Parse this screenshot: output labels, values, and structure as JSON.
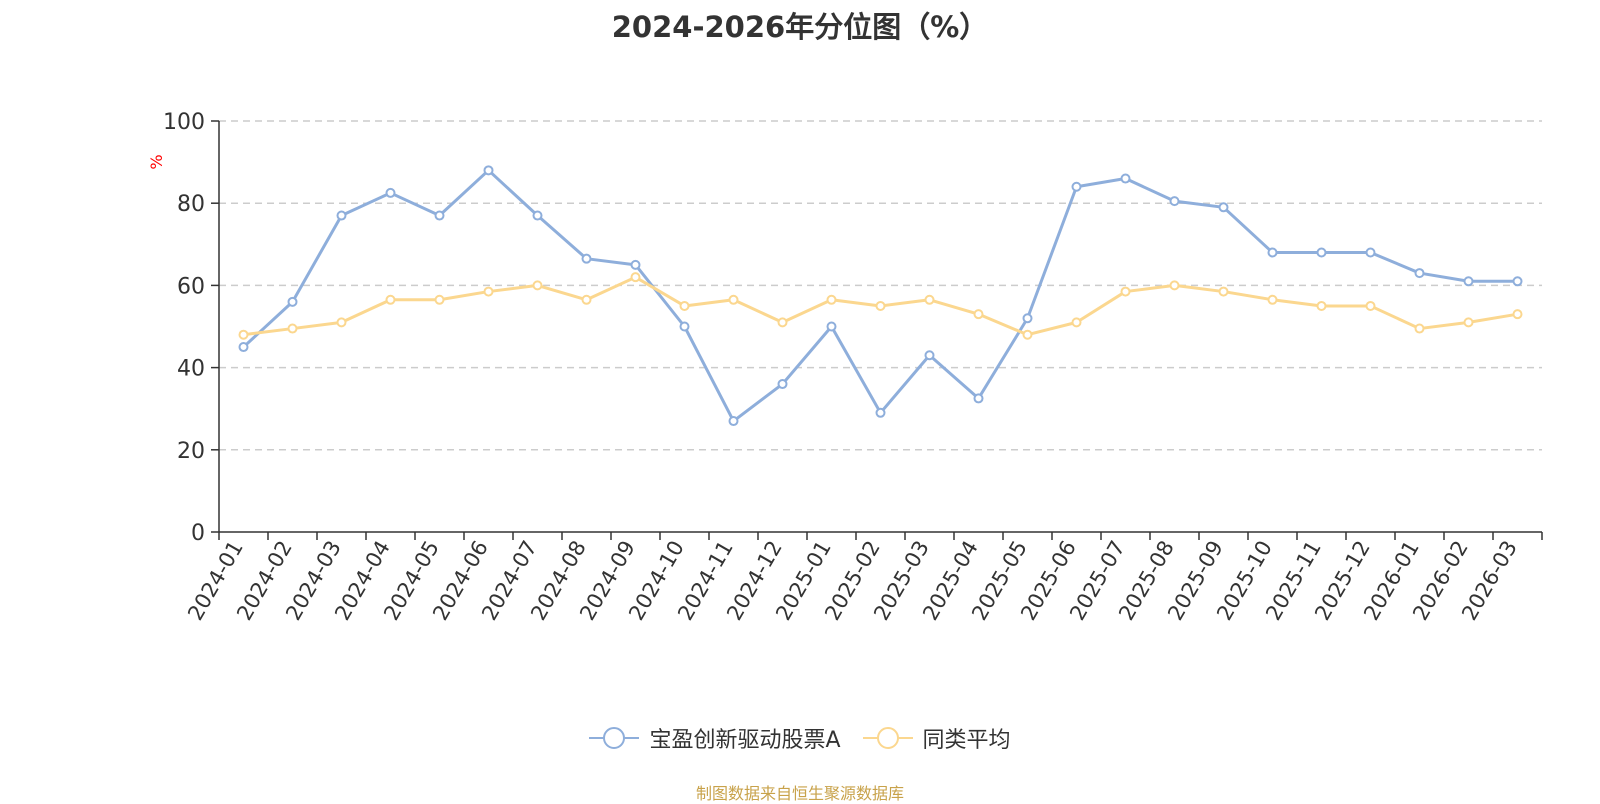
{
  "chart_data": {
    "type": "line",
    "title": "2024-2026年分位图（%）",
    "ylabel": "%",
    "xlabel": "",
    "ylim": [
      0,
      100
    ],
    "yticks": [
      "0",
      "20",
      "40",
      "60",
      "80",
      "100"
    ],
    "grid": true,
    "legend_position": "bottom-center",
    "categories": [
      "2024-01",
      "2024-02",
      "2024-03",
      "2024-04",
      "2024-05",
      "2024-06",
      "2024-07",
      "2024-08",
      "2024-09",
      "2024-10",
      "2024-11",
      "2024-12",
      "2025-01",
      "2025-02",
      "2025-03",
      "2025-04",
      "2025-05",
      "2025-06",
      "2025-07",
      "2025-08",
      "2025-09",
      "2025-10",
      "2025-11",
      "2025-12",
      "2026-01",
      "2026-02",
      "2026-03"
    ],
    "series": [
      {
        "name": "宝盈创新驱动股票A",
        "color": "#8eaedb",
        "values": [
          45,
          56,
          77,
          82.5,
          77,
          88,
          77,
          66.5,
          65,
          50,
          27,
          36,
          50,
          29,
          43,
          32.5,
          52,
          84,
          86,
          80.5,
          79,
          68,
          68,
          68,
          63,
          61,
          61
        ]
      },
      {
        "name": "同类平均",
        "color": "#fbd78f",
        "values": [
          48,
          49.5,
          51,
          56.5,
          56.5,
          58.5,
          60,
          56.5,
          62,
          55,
          56.5,
          51,
          56.5,
          55,
          56.5,
          53,
          48,
          51,
          58.5,
          60,
          58.5,
          56.5,
          55,
          55,
          49.5,
          51,
          53
        ]
      }
    ],
    "source": "制图数据来自恒生聚源数据库",
    "colors": {
      "axis": "#333333",
      "grid": "#cccccc",
      "ylabel": "#ff0000",
      "source": "#c8a24a",
      "text": "#333333"
    }
  }
}
